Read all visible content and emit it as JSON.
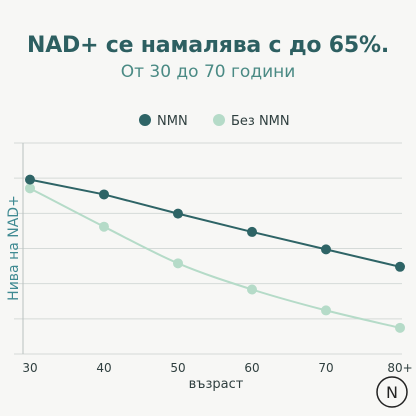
{
  "header": {
    "title": "NAD+ се намалява с до 65%.",
    "subtitle": "От 30 до 70 години"
  },
  "logo": {
    "letter": "N"
  },
  "colors": {
    "title": "#2d5f61",
    "nmn": "#2e6466",
    "no_nmn": "#b5dbc8",
    "grid": "#d5dad8"
  },
  "chart_data": {
    "type": "line",
    "categories": [
      "30",
      "40",
      "50",
      "60",
      "70",
      "80+"
    ],
    "xlabel": "възраст",
    "ylabel": "Нива на NAD+",
    "legend_position": "top-center",
    "grid": "horizontal",
    "series": [
      {
        "name": "NMN",
        "values": [
          100,
          91.5,
          80.5,
          70,
          60,
          50
        ],
        "color": "#2e6466",
        "smooth": false
      },
      {
        "name": "Без NMN",
        "values": [
          95,
          73,
          52,
          37,
          25,
          15
        ],
        "color": "#b5dbc8",
        "smooth": true
      }
    ],
    "ylim": [
      0,
      121
    ]
  }
}
